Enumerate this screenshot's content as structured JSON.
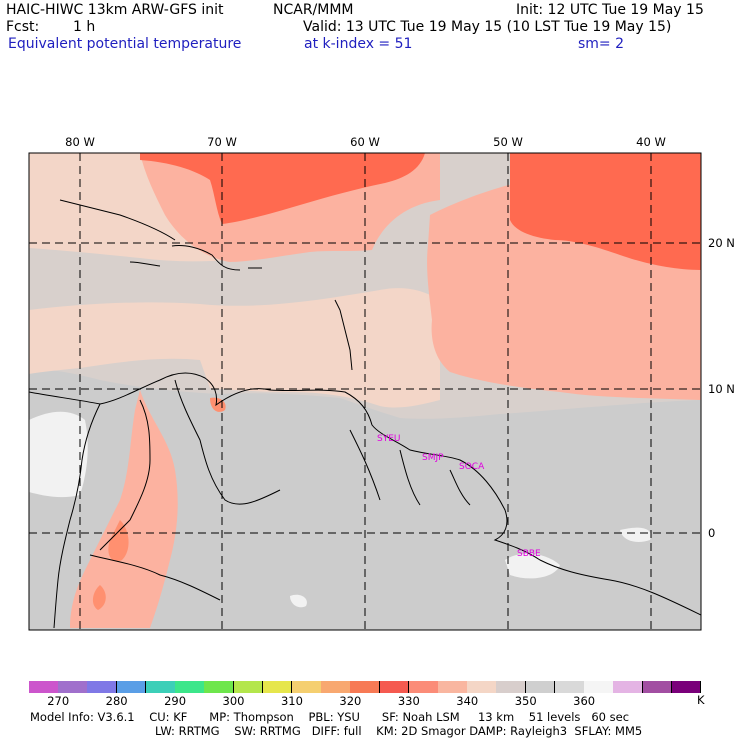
{
  "header": {
    "model_title": "HAIC-HIWC 13km ARW-GFS init",
    "org": "NCAR/MMM",
    "init": "Init: 12 UTC Tue 19 May 15",
    "fcst_label": "Fcst:",
    "fcst_value": "1 h",
    "valid": "Valid: 13 UTC Tue 19 May 15 (10 LST Tue 19 May 15)",
    "field_name": "Equivalent potential temperature",
    "level": "at k-index =  51",
    "smoothing": "sm= 2"
  },
  "map": {
    "lon_labels": [
      "80 W",
      "70 W",
      "60 W",
      "50 W",
      "40 W"
    ],
    "lat_labels": [
      "20 N",
      "10 N",
      "0"
    ],
    "stations": [
      "SYEU",
      "SMJP",
      "SOCA",
      "SBBE"
    ],
    "colors": {
      "p335": "#ff6a50",
      "p340": "#fcb2a0",
      "p345": "#f3d6c8",
      "p350": "#d8d0cc",
      "p355": "#cccccc",
      "p360": "#f2f2f2",
      "p325": "#ff9070",
      "coast": "#000000",
      "station": "#e000e0",
      "grid": "#000000"
    }
  },
  "colorbar": {
    "tick_labels": [
      "270",
      "280",
      "290",
      "300",
      "310",
      "320",
      "330",
      "340",
      "350",
      "360"
    ],
    "unit": "K",
    "colors": [
      "#cc55cc",
      "#a070cc",
      "#7f78e6",
      "#5a9ee6",
      "#3ccfb8",
      "#3ce68a",
      "#6ee64c",
      "#b4e64c",
      "#e6e64c",
      "#f5cf70",
      "#f8a870",
      "#f77a55",
      "#f55a50",
      "#fb8c78",
      "#f9b6a0",
      "#f4d6c6",
      "#d8cecc",
      "#cfcfcf",
      "#d9d9d9",
      "#f5f5f5",
      "#e4b4e4",
      "#a24ea2",
      "#7a007a"
    ]
  },
  "footer": {
    "line1": "Model Info: V3.6.1    CU: KF      MP: Thompson    PBL: YSU      SF: Noah LSM     13 km    51 levels   60 sec",
    "line2": "LW: RRTMG    SW: RRTMG   DIFF: full    KM: 2D Smagor DAMP: Rayleigh3  SFLAY: MM5"
  }
}
